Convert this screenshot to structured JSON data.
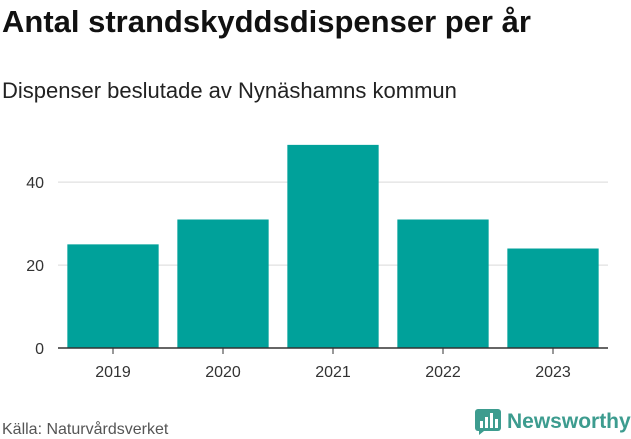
{
  "header": {
    "title": "Antal strandskyddsdispenser per år",
    "subtitle": "Dispenser beslutade av Nynäshamns kommun"
  },
  "footer": {
    "source": "Källa: Naturvårdsverket",
    "brand": "Newsworthy"
  },
  "colors": {
    "bar": "#00a19a",
    "grid": "#d9d9d9",
    "axis": "#333333",
    "brand": "#3d9c8f"
  },
  "chart_data": {
    "type": "bar",
    "categories": [
      "2019",
      "2020",
      "2021",
      "2022",
      "2023"
    ],
    "values": [
      25,
      31,
      49,
      31,
      24
    ],
    "title": "Antal strandskyddsdispenser per år",
    "subtitle": "Dispenser beslutade av Nynäshamns kommun",
    "xlabel": "",
    "ylabel": "",
    "ylim": [
      0,
      55
    ],
    "yticks": [
      0,
      20,
      40
    ],
    "grid": true
  }
}
